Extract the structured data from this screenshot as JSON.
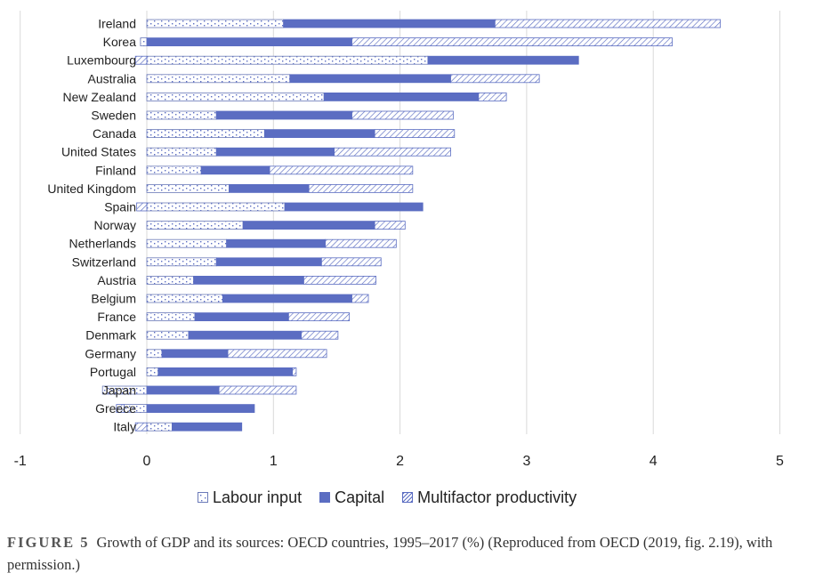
{
  "chart_data": {
    "type": "bar",
    "orientation": "horizontal",
    "stacked": true,
    "categories": [
      "Ireland",
      "Korea",
      "Luxembourg",
      "Australia",
      "New Zealand",
      "Sweden",
      "Canada",
      "United States",
      "Finland",
      "United Kingdom",
      "Spain",
      "Norway",
      "Netherlands",
      "Switzerland",
      "Austria",
      "Belgium",
      "France",
      "Denmark",
      "Germany",
      "Portugal",
      "Japan",
      "Greece",
      "Italy"
    ],
    "series": [
      {
        "name": "Labour input",
        "pattern": "dotted",
        "values": [
          1.08,
          -0.05,
          2.22,
          1.13,
          1.4,
          0.55,
          0.93,
          0.55,
          0.43,
          0.65,
          1.09,
          0.76,
          0.63,
          0.55,
          0.37,
          0.6,
          0.38,
          0.33,
          0.12,
          0.09,
          -0.35,
          -0.18,
          0.2
        ]
      },
      {
        "name": "Capital",
        "pattern": "solid",
        "values": [
          1.67,
          1.62,
          1.19,
          1.27,
          1.22,
          1.07,
          0.87,
          0.93,
          0.54,
          0.63,
          1.09,
          1.04,
          0.78,
          0.83,
          0.87,
          1.02,
          0.74,
          0.89,
          0.52,
          1.06,
          0.57,
          0.85,
          0.55
        ]
      },
      {
        "name": "Multifactor productivity",
        "pattern": "hatched",
        "values": [
          1.78,
          2.53,
          -0.09,
          0.7,
          0.22,
          0.8,
          0.63,
          0.92,
          1.13,
          0.82,
          -0.08,
          0.24,
          0.56,
          0.47,
          0.57,
          0.13,
          0.48,
          0.29,
          0.78,
          0.03,
          0.61,
          -0.06,
          -0.09
        ]
      }
    ],
    "title": "",
    "xlabel": "",
    "ylabel": "",
    "xlim": [
      -1,
      5
    ],
    "xticks": [
      "-1",
      "0",
      "1",
      "2",
      "3",
      "4",
      "5"
    ],
    "gridlines": "vertical",
    "legend_position": "bottom"
  },
  "colors": {
    "capital": "#5b6dc2",
    "labour_border": "#6b7ab8",
    "labour_dot": "#5b6dc2",
    "hatch_border": "#5b6dc2",
    "grid": "#d9d9d9",
    "text": "#222222"
  },
  "legend": {
    "labour": "Labour input",
    "capital": "Capital",
    "mfp": "Multifactor productivity"
  },
  "caption": {
    "label": "FIGURE 5",
    "text": "Growth of GDP and its sources: OECD countries, 1995–2017 (%) (Reproduced from OECD (2019, fig. 2.19), with permission.)"
  }
}
